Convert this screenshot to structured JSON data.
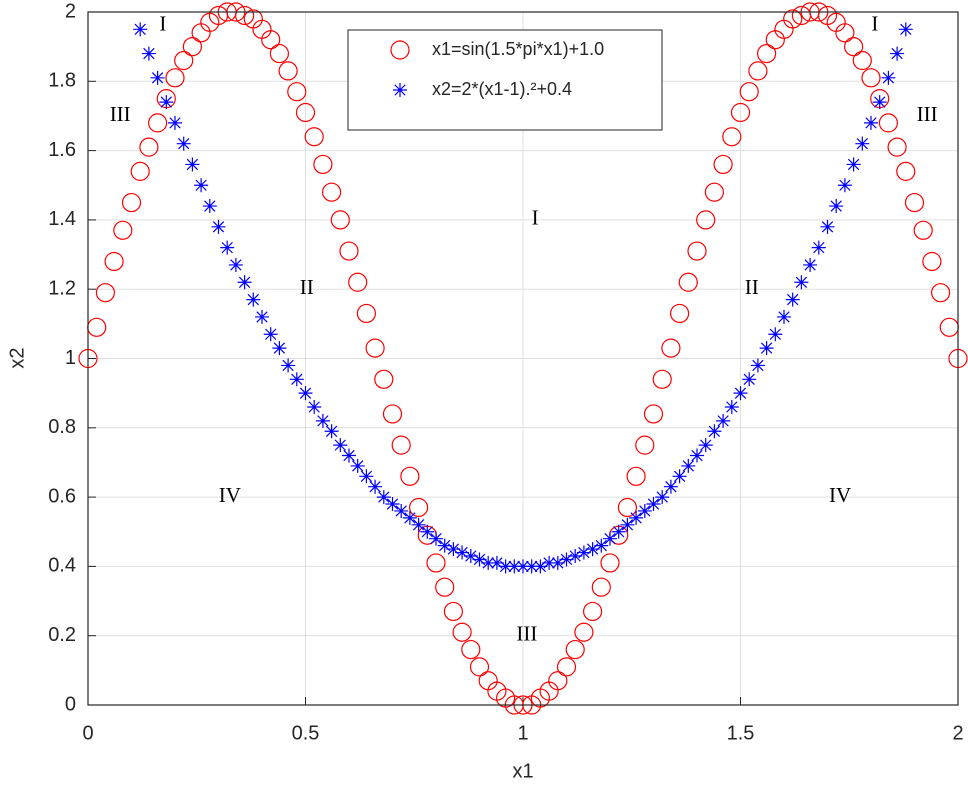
{
  "chart_data": {
    "type": "scatter",
    "xlabel": "x1",
    "ylabel": "x2",
    "xlim": [
      0,
      2
    ],
    "ylim": [
      0,
      2
    ],
    "xticks": [
      0,
      0.5,
      1,
      1.5,
      2
    ],
    "yticks": [
      0,
      0.2,
      0.4,
      0.6,
      0.8,
      1,
      1.2,
      1.4,
      1.6,
      1.8,
      2
    ],
    "grid": true,
    "legend": "top",
    "series": [
      {
        "name": "x1=sin(1.5*pi*x1)+1.0",
        "color": "#ff0000",
        "marker": "circle",
        "x": [
          0,
          0.02,
          0.04,
          0.06,
          0.08,
          0.1,
          0.12,
          0.14,
          0.16,
          0.18,
          0.2,
          0.22,
          0.24,
          0.26,
          0.28,
          0.3,
          0.32,
          0.34,
          0.36,
          0.38,
          0.4,
          0.42,
          0.44,
          0.46,
          0.48,
          0.5,
          0.52,
          0.54,
          0.56,
          0.58,
          0.6,
          0.62,
          0.64,
          0.66,
          0.68,
          0.7,
          0.72,
          0.74,
          0.76,
          0.78,
          0.8,
          0.82,
          0.84,
          0.86,
          0.88,
          0.9,
          0.92,
          0.94,
          0.96,
          0.98,
          1,
          1.02,
          1.04,
          1.06,
          1.08,
          1.1,
          1.12,
          1.14,
          1.16,
          1.18,
          1.2,
          1.22,
          1.24,
          1.26,
          1.28,
          1.3,
          1.32,
          1.34,
          1.36,
          1.38,
          1.4,
          1.42,
          1.44,
          1.46,
          1.48,
          1.5,
          1.52,
          1.54,
          1.56,
          1.58,
          1.6,
          1.62,
          1.64,
          1.66,
          1.68,
          1.7,
          1.72,
          1.74,
          1.76,
          1.78,
          1.8,
          1.82,
          1.84,
          1.86,
          1.88,
          1.9,
          1.92,
          1.94,
          1.96,
          1.98,
          2
        ],
        "values": [
          1.0,
          1.09,
          1.19,
          1.28,
          1.37,
          1.45,
          1.54,
          1.61,
          1.68,
          1.75,
          1.81,
          1.86,
          1.9,
          1.94,
          1.97,
          1.99,
          2.0,
          2.0,
          1.99,
          1.98,
          1.95,
          1.92,
          1.88,
          1.83,
          1.77,
          1.71,
          1.64,
          1.56,
          1.48,
          1.4,
          1.31,
          1.22,
          1.13,
          1.03,
          0.94,
          0.84,
          0.75,
          0.66,
          0.57,
          0.49,
          0.41,
          0.34,
          0.27,
          0.21,
          0.16,
          0.11,
          0.07,
          0.04,
          0.02,
          0.0,
          0.0,
          0.0,
          0.02,
          0.04,
          0.07,
          0.11,
          0.16,
          0.21,
          0.27,
          0.34,
          0.41,
          0.49,
          0.57,
          0.66,
          0.75,
          0.84,
          0.94,
          1.03,
          1.13,
          1.22,
          1.31,
          1.4,
          1.48,
          1.56,
          1.64,
          1.71,
          1.77,
          1.83,
          1.88,
          1.92,
          1.95,
          1.98,
          1.99,
          2.0,
          2.0,
          1.99,
          1.97,
          1.94,
          1.9,
          1.86,
          1.81,
          1.75,
          1.68,
          1.61,
          1.54,
          1.45,
          1.37,
          1.28,
          1.19,
          1.09,
          1.0
        ]
      },
      {
        "name": "x2=2*(x1-1).²+0.4",
        "color": "#0000ff",
        "marker": "asterisk",
        "x": [
          0.12,
          0.14,
          0.16,
          0.18,
          0.2,
          0.22,
          0.24,
          0.26,
          0.28,
          0.3,
          0.32,
          0.34,
          0.36,
          0.38,
          0.4,
          0.42,
          0.44,
          0.46,
          0.48,
          0.5,
          0.52,
          0.54,
          0.56,
          0.58,
          0.6,
          0.62,
          0.64,
          0.66,
          0.68,
          0.7,
          0.72,
          0.74,
          0.76,
          0.78,
          0.8,
          0.82,
          0.84,
          0.86,
          0.88,
          0.9,
          0.92,
          0.94,
          0.96,
          0.98,
          1,
          1.02,
          1.04,
          1.06,
          1.08,
          1.1,
          1.12,
          1.14,
          1.16,
          1.18,
          1.2,
          1.22,
          1.24,
          1.26,
          1.28,
          1.3,
          1.32,
          1.34,
          1.36,
          1.38,
          1.4,
          1.42,
          1.44,
          1.46,
          1.48,
          1.5,
          1.52,
          1.54,
          1.56,
          1.58,
          1.6,
          1.62,
          1.64,
          1.66,
          1.68,
          1.7,
          1.72,
          1.74,
          1.76,
          1.78,
          1.8,
          1.82,
          1.84,
          1.86,
          1.88
        ],
        "values": [
          1.95,
          1.88,
          1.81,
          1.74,
          1.68,
          1.62,
          1.56,
          1.5,
          1.44,
          1.38,
          1.32,
          1.27,
          1.22,
          1.17,
          1.12,
          1.07,
          1.03,
          0.98,
          0.94,
          0.9,
          0.86,
          0.82,
          0.79,
          0.75,
          0.72,
          0.69,
          0.66,
          0.63,
          0.6,
          0.58,
          0.56,
          0.54,
          0.52,
          0.5,
          0.48,
          0.46,
          0.45,
          0.44,
          0.43,
          0.42,
          0.41,
          0.41,
          0.4,
          0.4,
          0.4,
          0.4,
          0.4,
          0.41,
          0.41,
          0.42,
          0.43,
          0.44,
          0.45,
          0.46,
          0.48,
          0.5,
          0.52,
          0.54,
          0.56,
          0.58,
          0.6,
          0.63,
          0.66,
          0.69,
          0.72,
          0.75,
          0.79,
          0.82,
          0.86,
          0.9,
          0.94,
          0.98,
          1.03,
          1.07,
          1.12,
          1.17,
          1.22,
          1.27,
          1.32,
          1.38,
          1.44,
          1.5,
          1.56,
          1.62,
          1.68,
          1.74,
          1.81,
          1.88,
          1.95
        ]
      }
    ],
    "annotations": [
      {
        "text": "I",
        "x": 0.172,
        "y": 1.96
      },
      {
        "text": "III",
        "x": 0.074,
        "y": 1.7
      },
      {
        "text": "I",
        "x": 1.809,
        "y": 1.96
      },
      {
        "text": "III",
        "x": 1.929,
        "y": 1.7
      },
      {
        "text": "I",
        "x": 1.028,
        "y": 1.4
      },
      {
        "text": "II",
        "x": 0.503,
        "y": 1.2
      },
      {
        "text": "II",
        "x": 1.526,
        "y": 1.2
      },
      {
        "text": "IV",
        "x": 0.326,
        "y": 0.6
      },
      {
        "text": "IV",
        "x": 1.729,
        "y": 0.6
      },
      {
        "text": "III",
        "x": 1.009,
        "y": 0.2
      }
    ]
  }
}
